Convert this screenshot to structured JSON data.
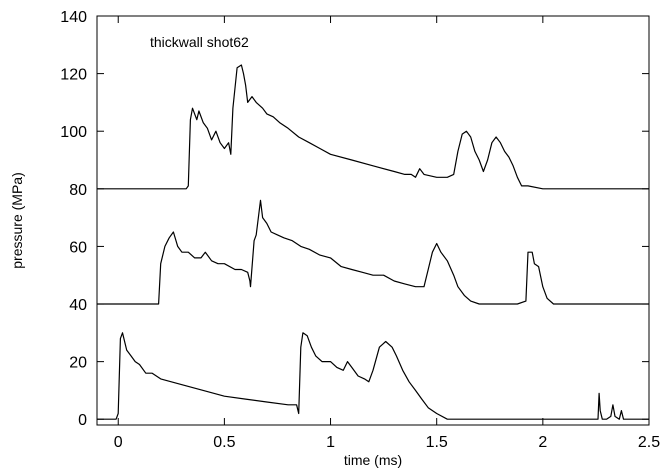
{
  "chart_data": {
    "type": "line",
    "title": "",
    "annotation": "thickwall shot62",
    "xlabel": "time (ms)",
    "ylabel": "pressure (MPa)",
    "xlim": [
      -0.1,
      2.5
    ],
    "ylim": [
      -2,
      140
    ],
    "xticks": [
      0,
      0.5,
      1,
      1.5,
      2,
      2.5
    ],
    "xtick_labels": [
      "0",
      "0.5",
      "1",
      "1.5",
      "2",
      "2.5"
    ],
    "yticks": [
      0,
      20,
      40,
      60,
      80,
      100,
      120,
      140
    ],
    "ytick_labels": [
      "0",
      "20",
      "40",
      "60",
      "80",
      "100",
      "120",
      "140"
    ],
    "grid": false,
    "legend": "none",
    "line_color": "#000000",
    "series": [
      {
        "points": [
          [
            -0.1,
            80
          ],
          [
            0.2,
            80
          ],
          [
            0.32,
            80
          ],
          [
            0.33,
            81
          ],
          [
            0.34,
            104
          ],
          [
            0.35,
            108
          ],
          [
            0.37,
            104
          ],
          [
            0.38,
            107
          ],
          [
            0.4,
            103
          ],
          [
            0.42,
            101
          ],
          [
            0.44,
            97
          ],
          [
            0.46,
            100
          ],
          [
            0.48,
            96
          ],
          [
            0.5,
            94
          ],
          [
            0.52,
            96
          ],
          [
            0.53,
            92
          ],
          [
            0.54,
            108
          ],
          [
            0.55,
            115
          ],
          [
            0.56,
            122
          ],
          [
            0.58,
            123
          ],
          [
            0.59,
            120
          ],
          [
            0.6,
            116
          ],
          [
            0.61,
            110
          ],
          [
            0.63,
            112
          ],
          [
            0.65,
            110
          ],
          [
            0.68,
            108
          ],
          [
            0.7,
            106
          ],
          [
            0.73,
            105
          ],
          [
            0.76,
            103
          ],
          [
            0.8,
            101
          ],
          [
            0.85,
            98
          ],
          [
            0.9,
            96
          ],
          [
            0.95,
            94
          ],
          [
            1.0,
            92
          ],
          [
            1.1,
            90
          ],
          [
            1.2,
            88
          ],
          [
            1.3,
            86
          ],
          [
            1.35,
            85
          ],
          [
            1.38,
            85
          ],
          [
            1.4,
            84
          ],
          [
            1.42,
            87
          ],
          [
            1.44,
            85
          ],
          [
            1.5,
            84
          ],
          [
            1.55,
            84
          ],
          [
            1.58,
            85
          ],
          [
            1.6,
            93
          ],
          [
            1.62,
            99
          ],
          [
            1.64,
            100
          ],
          [
            1.66,
            98
          ],
          [
            1.68,
            93
          ],
          [
            1.7,
            90
          ],
          [
            1.72,
            86
          ],
          [
            1.74,
            90
          ],
          [
            1.76,
            96
          ],
          [
            1.78,
            98
          ],
          [
            1.8,
            96
          ],
          [
            1.82,
            93
          ],
          [
            1.84,
            91
          ],
          [
            1.86,
            88
          ],
          [
            1.88,
            84
          ],
          [
            1.9,
            81
          ],
          [
            1.93,
            81
          ],
          [
            2.0,
            80
          ],
          [
            2.5,
            80
          ]
        ]
      },
      {
        "points": [
          [
            -0.1,
            40
          ],
          [
            0.1,
            40
          ],
          [
            0.19,
            40
          ],
          [
            0.2,
            54
          ],
          [
            0.22,
            60
          ],
          [
            0.24,
            63
          ],
          [
            0.26,
            65
          ],
          [
            0.28,
            60
          ],
          [
            0.3,
            58
          ],
          [
            0.33,
            58
          ],
          [
            0.36,
            56
          ],
          [
            0.39,
            56
          ],
          [
            0.41,
            58
          ],
          [
            0.44,
            55
          ],
          [
            0.47,
            54
          ],
          [
            0.5,
            54
          ],
          [
            0.55,
            52
          ],
          [
            0.58,
            52
          ],
          [
            0.61,
            51
          ],
          [
            0.62,
            48
          ],
          [
            0.623,
            46
          ],
          [
            0.64,
            62
          ],
          [
            0.65,
            64
          ],
          [
            0.67,
            76
          ],
          [
            0.68,
            70
          ],
          [
            0.7,
            68
          ],
          [
            0.72,
            65
          ],
          [
            0.75,
            64
          ],
          [
            0.78,
            63
          ],
          [
            0.82,
            62
          ],
          [
            0.86,
            60
          ],
          [
            0.9,
            59
          ],
          [
            0.95,
            57
          ],
          [
            1.0,
            56
          ],
          [
            1.05,
            53
          ],
          [
            1.1,
            52
          ],
          [
            1.15,
            51
          ],
          [
            1.2,
            50
          ],
          [
            1.25,
            50
          ],
          [
            1.3,
            48
          ],
          [
            1.35,
            47
          ],
          [
            1.4,
            46
          ],
          [
            1.44,
            46
          ],
          [
            1.46,
            52
          ],
          [
            1.48,
            58
          ],
          [
            1.5,
            61
          ],
          [
            1.52,
            58
          ],
          [
            1.55,
            55
          ],
          [
            1.58,
            50
          ],
          [
            1.6,
            46
          ],
          [
            1.63,
            43
          ],
          [
            1.66,
            41
          ],
          [
            1.7,
            40
          ],
          [
            1.8,
            40
          ],
          [
            1.88,
            40
          ],
          [
            1.92,
            41
          ],
          [
            1.93,
            58
          ],
          [
            1.95,
            58
          ],
          [
            1.96,
            54
          ],
          [
            1.98,
            53
          ],
          [
            2.0,
            46
          ],
          [
            2.02,
            42
          ],
          [
            2.05,
            40
          ],
          [
            2.5,
            40
          ]
        ]
      },
      {
        "points": [
          [
            -0.1,
            0
          ],
          [
            -0.01,
            0
          ],
          [
            0.0,
            2
          ],
          [
            0.01,
            28
          ],
          [
            0.02,
            30
          ],
          [
            0.04,
            24
          ],
          [
            0.06,
            22
          ],
          [
            0.08,
            20
          ],
          [
            0.1,
            19
          ],
          [
            0.13,
            16
          ],
          [
            0.16,
            16
          ],
          [
            0.2,
            14
          ],
          [
            0.25,
            13
          ],
          [
            0.3,
            12
          ],
          [
            0.4,
            10
          ],
          [
            0.5,
            8
          ],
          [
            0.6,
            7
          ],
          [
            0.7,
            6
          ],
          [
            0.8,
            5
          ],
          [
            0.84,
            5
          ],
          [
            0.85,
            2
          ],
          [
            0.86,
            25
          ],
          [
            0.87,
            30
          ],
          [
            0.89,
            29
          ],
          [
            0.91,
            25
          ],
          [
            0.93,
            22
          ],
          [
            0.96,
            20
          ],
          [
            1.0,
            20
          ],
          [
            1.03,
            18
          ],
          [
            1.06,
            17
          ],
          [
            1.08,
            20
          ],
          [
            1.1,
            18
          ],
          [
            1.13,
            15
          ],
          [
            1.16,
            14
          ],
          [
            1.18,
            13
          ],
          [
            1.2,
            17
          ],
          [
            1.23,
            25
          ],
          [
            1.26,
            27
          ],
          [
            1.29,
            25
          ],
          [
            1.31,
            22
          ],
          [
            1.34,
            17
          ],
          [
            1.37,
            13
          ],
          [
            1.4,
            10
          ],
          [
            1.43,
            7
          ],
          [
            1.46,
            4
          ],
          [
            1.5,
            2
          ],
          [
            1.55,
            0
          ],
          [
            2.25,
            0
          ],
          [
            2.26,
            0
          ],
          [
            2.265,
            9
          ],
          [
            2.27,
            3
          ],
          [
            2.28,
            0
          ],
          [
            2.3,
            0
          ],
          [
            2.32,
            1
          ],
          [
            2.33,
            5
          ],
          [
            2.34,
            1
          ],
          [
            2.36,
            0
          ],
          [
            2.37,
            3
          ],
          [
            2.38,
            0
          ],
          [
            2.5,
            0
          ]
        ]
      }
    ]
  }
}
